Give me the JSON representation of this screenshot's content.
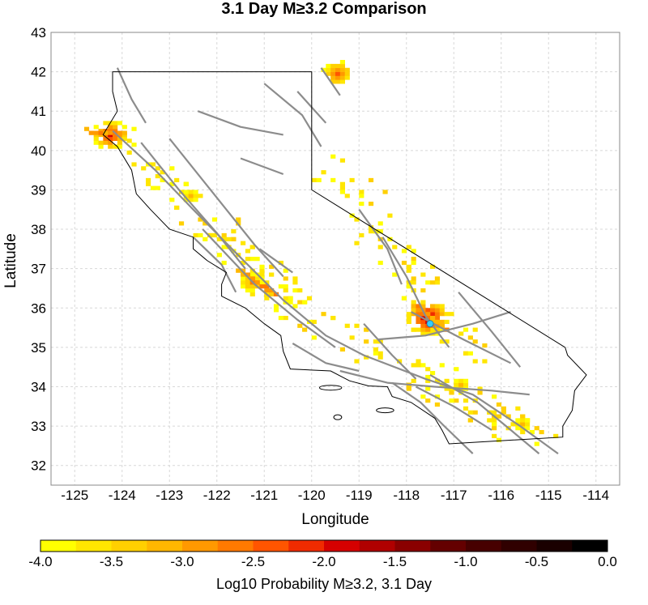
{
  "title": "3.1 Day M≥3.2 Comparison",
  "chart_data": {
    "type": "heatmap",
    "title": "3.1 Day M≥3.2 Comparison",
    "xlabel": "Longitude",
    "ylabel": "Latitude",
    "xlim": [
      -125.5,
      -113.5
    ],
    "ylim": [
      31.5,
      43.0
    ],
    "x_ticks": [
      "-125",
      "-124",
      "-123",
      "-122",
      "-121",
      "-120",
      "-119",
      "-118",
      "-117",
      "-116",
      "-115",
      "-114"
    ],
    "y_ticks": [
      "32",
      "33",
      "34",
      "35",
      "36",
      "37",
      "38",
      "39",
      "40",
      "41",
      "42",
      "43"
    ],
    "grid": true,
    "colorbar": {
      "label": "Log10 Probability M≥3.2, 3.1 Day",
      "range": [
        -4.0,
        0.0
      ],
      "tick_labels": [
        "-4.0",
        "-3.5",
        "-3.0",
        "-2.5",
        "-2.0",
        "-1.5",
        "-1.0",
        "-0.5",
        "0.0"
      ],
      "colors": [
        "#ffff00",
        "#ffe600",
        "#ffd000",
        "#ffb700",
        "#ff9900",
        "#ff7a00",
        "#ff5500",
        "#f02b00",
        "#d50000",
        "#b00000",
        "#8a0000",
        "#640000",
        "#470000",
        "#300000",
        "#1a0000",
        "#000000"
      ]
    },
    "hotspots": [
      {
        "lon": -117.6,
        "lat": 35.7,
        "log10p": -1.3
      },
      {
        "lon": -121.3,
        "lat": 36.6,
        "log10p": -2.6
      },
      {
        "lon": -124.3,
        "lat": 40.35,
        "log10p": -1.8
      },
      {
        "lon": -119.5,
        "lat": 41.9,
        "log10p": -2.2
      },
      {
        "lon": -122.6,
        "lat": 38.8,
        "log10p": -3.0
      },
      {
        "lon": -116.9,
        "lat": 34.0,
        "log10p": -3.0
      },
      {
        "lon": -115.6,
        "lat": 33.0,
        "log10p": -3.0
      }
    ],
    "event_marker": {
      "lon": -117.5,
      "lat": 35.6,
      "color": "#33ccff"
    }
  }
}
